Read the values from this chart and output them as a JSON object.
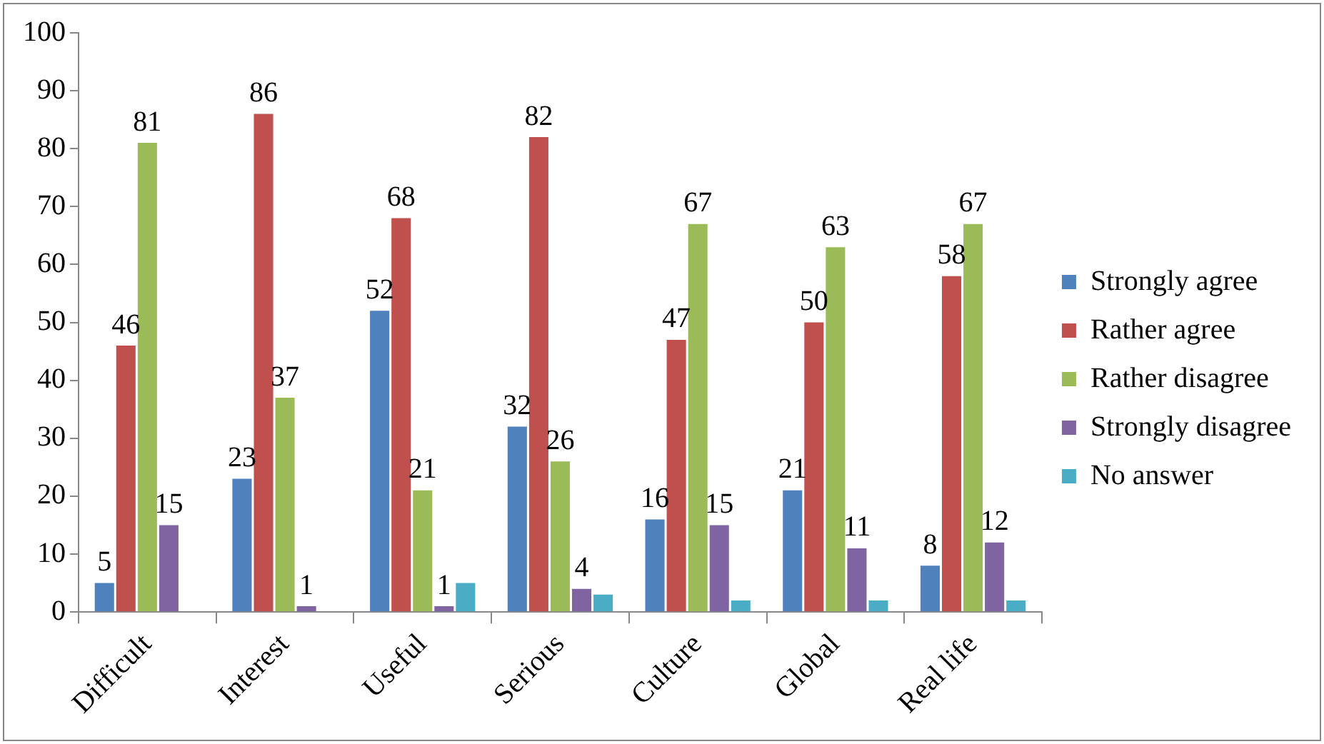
{
  "chart_data": {
    "type": "bar",
    "categories": [
      "Difficult",
      "Interest",
      "Useful",
      "Serious",
      "Culture",
      "Global",
      "Real life"
    ],
    "series": [
      {
        "name": "Strongly agree",
        "color": "#4f81bd",
        "values": [
          5,
          23,
          52,
          32,
          16,
          21,
          8
        ],
        "value_labels": [
          "5",
          "23",
          "52",
          "32",
          "16",
          "21",
          "8"
        ]
      },
      {
        "name": "Rather agree",
        "color": "#c0504d",
        "values": [
          46,
          86,
          68,
          82,
          47,
          50,
          58
        ],
        "value_labels": [
          "46",
          "86",
          "68",
          "82",
          "47",
          "50",
          "58"
        ]
      },
      {
        "name": "Rather disagree",
        "color": "#9bbb59",
        "values": [
          81,
          37,
          21,
          26,
          67,
          63,
          67
        ],
        "value_labels": [
          "81",
          "37",
          "21",
          "26",
          "67",
          "63",
          "67"
        ]
      },
      {
        "name": "Strongly disagree",
        "color": "#8064a2",
        "values": [
          15,
          1,
          1,
          4,
          15,
          11,
          12
        ],
        "value_labels": [
          "15",
          "1",
          "1",
          "4",
          "15",
          "11",
          "12"
        ]
      },
      {
        "name": "No answer",
        "color": "#4bacc6",
        "values": [
          0,
          0,
          5,
          3,
          2,
          2,
          2
        ],
        "value_labels": [
          null,
          null,
          null,
          null,
          null,
          null,
          null
        ]
      }
    ],
    "ylim": [
      0,
      100
    ],
    "yticks": [
      0,
      10,
      20,
      30,
      40,
      50,
      60,
      70,
      80,
      90,
      100
    ],
    "grid": false,
    "legend": "right"
  }
}
